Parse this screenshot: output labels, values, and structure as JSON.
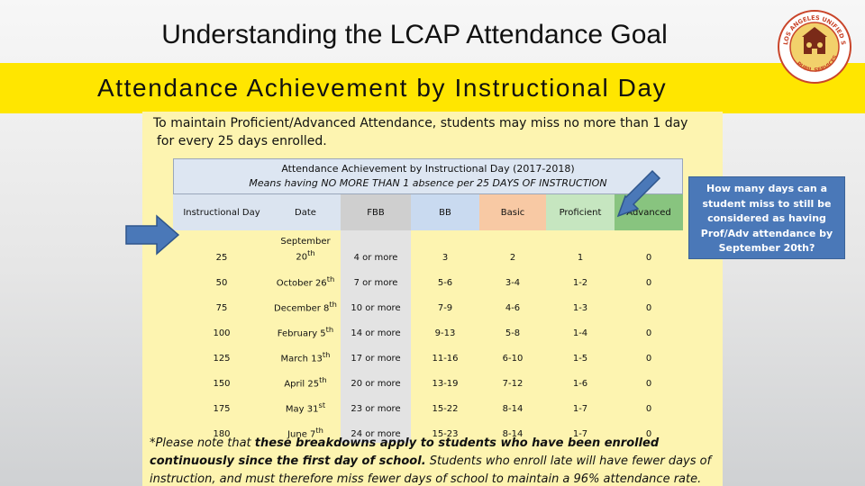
{
  "header": {
    "title": "Understanding the LCAP Attendance Goal",
    "banner": "Attendance Achievement by Instructional Day"
  },
  "logo": {
    "arc_text": "LOS ANGELES UNIFIED SCHOOL DISTRICT",
    "bottom_text": "PUPIL SERVICES",
    "colors": {
      "ring": "#c9452a",
      "center": "#f2d16b"
    }
  },
  "intro": {
    "line1": "To maintain Proficient/Advanced Attendance, students may miss no more than 1 day",
    "line2": "for every 25 days enrolled."
  },
  "table": {
    "title": "Attendance Achievement by Instructional Day (2017-2018)",
    "subtitle": "Means having NO MORE THAN 1 absence per 25 DAYS OF INSTRUCTION",
    "headers": [
      "Instructional Day",
      "Date",
      "FBB",
      "BB",
      "Basic",
      "Proficient",
      "Advanced"
    ],
    "rows": [
      {
        "iday": "25",
        "date": "September 20th",
        "date_main": "September",
        "date_day": "20",
        "date_sup": "th",
        "fbb": "4 or more",
        "bb": "3",
        "basic": "2",
        "prof": "1",
        "adv": "0"
      },
      {
        "iday": "50",
        "date_day": "October 26",
        "date_sup": "th",
        "fbb": "7 or more",
        "bb": "5-6",
        "basic": "3-4",
        "prof": "1-2",
        "adv": "0"
      },
      {
        "iday": "75",
        "date_day": "December 8",
        "date_sup": "th",
        "fbb": "10 or more",
        "bb": "7-9",
        "basic": "4-6",
        "prof": "1-3",
        "adv": "0"
      },
      {
        "iday": "100",
        "date_day": "February 5",
        "date_sup": "th",
        "fbb": "14 or more",
        "bb": "9-13",
        "basic": "5-8",
        "prof": "1-4",
        "adv": "0"
      },
      {
        "iday": "125",
        "date_day": "March 13",
        "date_sup": "th",
        "fbb": "17 or more",
        "bb": "11-16",
        "basic": "6-10",
        "prof": "1-5",
        "adv": "0"
      },
      {
        "iday": "150",
        "date_day": "April 25",
        "date_sup": "th",
        "fbb": "20 or more",
        "bb": "13-19",
        "basic": "7-12",
        "prof": "1-6",
        "adv": "0"
      },
      {
        "iday": "175",
        "date_day": "May 31",
        "date_sup": "st",
        "fbb": "23 or more",
        "bb": "15-22",
        "basic": "8-14",
        "prof": "1-7",
        "adv": "0"
      },
      {
        "iday": "180",
        "date_day": "June 7",
        "date_sup": "th",
        "fbb": "24 or more",
        "bb": "15-23",
        "basic": "8-14",
        "prof": "1-7",
        "adv": "0"
      }
    ]
  },
  "note": {
    "part1": "*Please note that ",
    "part2": "these breakdowns apply to students who have been enrolled continuously since the first day of school.",
    "part3": "  Students who enroll late will have fewer days of instruction, and must therefore miss fewer days of school to maintain a 96% attendance rate."
  },
  "callout": {
    "text": "How many days can a student miss to still be considered as having Prof/Adv attendance by September 20th?"
  },
  "colors": {
    "banner": "#ffe600",
    "panel": "#fdf4b0",
    "callout": "#4a78b8",
    "fbb": "#cfcfcf",
    "bb": "#c9daf0",
    "basic": "#f8c9a4",
    "proficient": "#c6e6c0",
    "advanced": "#88c47f"
  }
}
